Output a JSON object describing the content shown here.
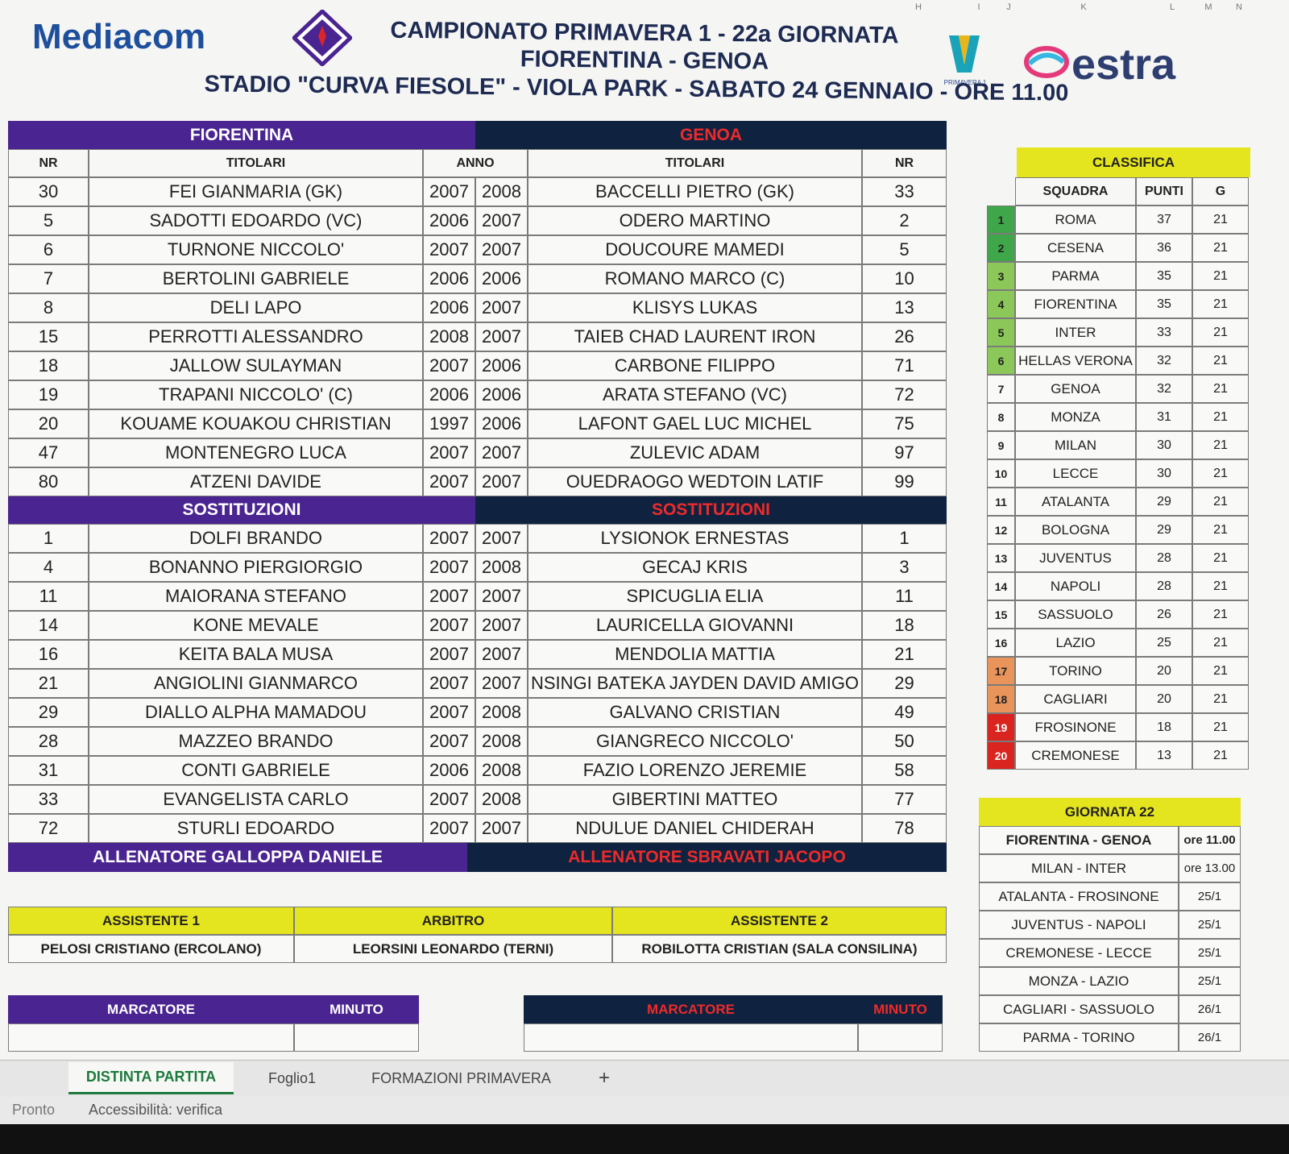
{
  "spreadsheet": {
    "column_letters": [
      "H",
      "I",
      "J",
      "K",
      "L",
      "M",
      "N"
    ]
  },
  "header": {
    "sponsor_left": "Mediacom",
    "sponsor_right": "estra",
    "logo_caption": "PRIMAVERA 1",
    "title": "CAMPIONATO PRIMAVERA 1 - 22a GIORNATA",
    "match": "FIORENTINA - GENOA",
    "venue": "STADIO \"CURVA FIESOLE\" - VIOLA PARK - SABATO 24 GENNAIO - ORE 11.00"
  },
  "lineups": {
    "home_team": "FIORENTINA",
    "away_team": "GENOA",
    "columns": {
      "home_nr": "NR",
      "home_name": "TITOLARI",
      "year": "ANNO",
      "away_name": "TITOLARI",
      "away_nr": "NR"
    },
    "starters": [
      [
        30,
        "FEI GIANMARIA (GK)",
        2007,
        2008,
        "BACCELLI PIETRO (GK)",
        33
      ],
      [
        5,
        "SADOTTI EDOARDO (VC)",
        2006,
        2007,
        "ODERO MARTINO",
        2
      ],
      [
        6,
        "TURNONE NICCOLO'",
        2007,
        2007,
        "DOUCOURE MAMEDI",
        5
      ],
      [
        7,
        "BERTOLINI GABRIELE",
        2006,
        2006,
        "ROMANO MARCO (C)",
        10
      ],
      [
        8,
        "DELI LAPO",
        2006,
        2007,
        "KLISYS LUKAS",
        13
      ],
      [
        15,
        "PERROTTI ALESSANDRO",
        2008,
        2007,
        "TAIEB CHAD LAURENT IRON",
        26
      ],
      [
        18,
        "JALLOW SULAYMAN",
        2007,
        2006,
        "CARBONE FILIPPO",
        71
      ],
      [
        19,
        "TRAPANI NICCOLO' (C)",
        2006,
        2006,
        "ARATA STEFANO (VC)",
        72
      ],
      [
        20,
        "KOUAME KOUAKOU CHRISTIAN",
        1997,
        2006,
        "LAFONT GAEL LUC MICHEL",
        75
      ],
      [
        47,
        "MONTENEGRO LUCA",
        2007,
        2007,
        "ZULEVIC ADAM",
        97
      ],
      [
        80,
        "ATZENI DAVIDE",
        2007,
        2007,
        "OUEDRAOGO WEDTOIN LATIF",
        99
      ]
    ],
    "subs_home": "SOSTITUZIONI",
    "subs_away": "SOSTITUZIONI",
    "substitutes": [
      [
        1,
        "DOLFI BRANDO",
        2007,
        2007,
        "LYSIONOK ERNESTAS",
        1
      ],
      [
        4,
        "BONANNO PIERGIORGIO",
        2007,
        2008,
        "GECAJ KRIS",
        3
      ],
      [
        11,
        "MAIORANA STEFANO",
        2007,
        2007,
        "SPICUGLIA ELIA",
        11
      ],
      [
        14,
        "KONE MEVALE",
        2007,
        2007,
        "LAURICELLA GIOVANNI",
        18
      ],
      [
        16,
        "KEITA BALA MUSA",
        2007,
        2007,
        "MENDOLIA MATTIA",
        21
      ],
      [
        21,
        "ANGIOLINI GIANMARCO",
        2007,
        2007,
        "NSINGI BATEKA JAYDEN DAVID AMIGO",
        29
      ],
      [
        29,
        "DIALLO ALPHA MAMADOU",
        2007,
        2008,
        "GALVANO CRISTIAN",
        49
      ],
      [
        28,
        "MAZZEO BRANDO",
        2007,
        2008,
        "GIANGRECO NICCOLO'",
        50
      ],
      [
        31,
        "CONTI GABRIELE",
        2006,
        2008,
        "FAZIO LORENZO JEREMIE",
        58
      ],
      [
        33,
        "EVANGELISTA CARLO",
        2007,
        2008,
        "GIBERTINI MATTEO",
        77
      ],
      [
        72,
        "STURLI EDOARDO",
        2007,
        2007,
        "NDULUE DANIEL CHIDERAH",
        78
      ]
    ],
    "home_coach": "ALLENATORE GALLOPPA DANIELE",
    "away_coach": "ALLENATORE SBRAVATI JACOPO"
  },
  "officials": {
    "headers": [
      "ASSISTENTE 1",
      "ARBITRO",
      "ASSISTENTE 2"
    ],
    "names": [
      "PELOSI CRISTIANO (ERCOLANO)",
      "LEORSINI LEONARDO (TERNI)",
      "ROBILOTTA CRISTIAN (SALA CONSILINA)"
    ]
  },
  "scorers": {
    "home": [
      "MARCATORE",
      "MINUTO"
    ],
    "away": [
      "MARCATORE",
      "MINUTO"
    ]
  },
  "standings": {
    "title": "CLASSIFICA",
    "columns": [
      "SQUADRA",
      "PUNTI",
      "G"
    ],
    "rows": [
      {
        "rank": 1,
        "team": "ROMA",
        "points": 37,
        "played": 21,
        "color": "#3fa64a"
      },
      {
        "rank": 2,
        "team": "CESENA",
        "points": 36,
        "played": 21,
        "color": "#3fa64a"
      },
      {
        "rank": 3,
        "team": "PARMA",
        "points": 35,
        "played": 21,
        "color": "#8cc75a"
      },
      {
        "rank": 4,
        "team": "FIORENTINA",
        "points": 35,
        "played": 21,
        "color": "#8cc75a"
      },
      {
        "rank": 5,
        "team": "INTER",
        "points": 33,
        "played": 21,
        "color": "#8cc75a"
      },
      {
        "rank": 6,
        "team": "HELLAS VERONA",
        "points": 32,
        "played": 21,
        "color": "#8cc75a"
      },
      {
        "rank": 7,
        "team": "GENOA",
        "points": 32,
        "played": 21
      },
      {
        "rank": 8,
        "team": "MONZA",
        "points": 31,
        "played": 21
      },
      {
        "rank": 9,
        "team": "MILAN",
        "points": 30,
        "played": 21
      },
      {
        "rank": 10,
        "team": "LECCE",
        "points": 30,
        "played": 21
      },
      {
        "rank": 11,
        "team": "ATALANTA",
        "points": 29,
        "played": 21
      },
      {
        "rank": 12,
        "team": "BOLOGNA",
        "points": 29,
        "played": 21
      },
      {
        "rank": 13,
        "team": "JUVENTUS",
        "points": 28,
        "played": 21
      },
      {
        "rank": 14,
        "team": "NAPOLI",
        "points": 28,
        "played": 21
      },
      {
        "rank": 15,
        "team": "SASSUOLO",
        "points": 26,
        "played": 21
      },
      {
        "rank": 16,
        "team": "LAZIO",
        "points": 25,
        "played": 21
      },
      {
        "rank": 17,
        "team": "TORINO",
        "points": 20,
        "played": 21,
        "color": "#e8945a"
      },
      {
        "rank": 18,
        "team": "CAGLIARI",
        "points": 20,
        "played": 21,
        "color": "#e8945a"
      },
      {
        "rank": 19,
        "team": "FROSINONE",
        "points": 18,
        "played": 21,
        "color": "#d9241f"
      },
      {
        "rank": 20,
        "team": "CREMONESE",
        "points": 13,
        "played": 21,
        "color": "#d9241f"
      }
    ]
  },
  "fixtures": {
    "title": "GIORNATA 22",
    "rows": [
      [
        "FIORENTINA - GENOA",
        "ore 11.00"
      ],
      [
        "MILAN - INTER",
        "ore 13.00"
      ],
      [
        "ATALANTA - FROSINONE",
        "25/1"
      ],
      [
        "JUVENTUS - NAPOLI",
        "25/1"
      ],
      [
        "CREMONESE - LECCE",
        "25/1"
      ],
      [
        "MONZA - LAZIO",
        "25/1"
      ],
      [
        "CAGLIARI - SASSUOLO",
        "26/1"
      ],
      [
        "PARMA - TORINO",
        "26/1"
      ]
    ]
  },
  "tabs": [
    "DISTINTA PARTITA",
    "Foglio1",
    "FORMAZIONI PRIMAVERA",
    "+"
  ],
  "status": {
    "state": "Pronto",
    "accessibility": "Accessibilità: verifica"
  }
}
